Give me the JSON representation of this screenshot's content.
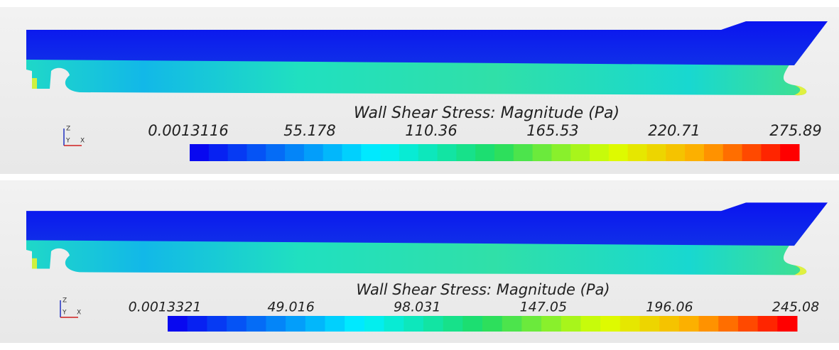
{
  "panels": [
    {
      "legend": {
        "title": "Wall Shear Stress: Magnitude (Pa)",
        "ticks": [
          0.0013116,
          55.178,
          110.36,
          165.53,
          220.71,
          275.89
        ]
      },
      "triad": {
        "z": "Z",
        "y": "Y",
        "x": "X"
      }
    },
    {
      "legend": {
        "title": "Wall Shear Stress: Magnitude (Pa)",
        "ticks": [
          0.0013321,
          49.016,
          98.031,
          147.05,
          196.06,
          245.08
        ]
      },
      "triad": {
        "z": "Z",
        "y": "Y",
        "x": "X"
      }
    }
  ]
}
